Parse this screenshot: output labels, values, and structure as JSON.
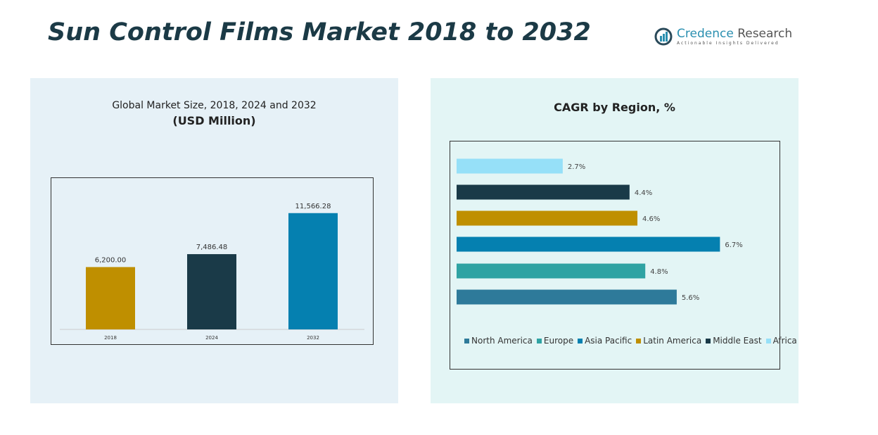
{
  "title": "Sun Control Films Market 2018 to 2032",
  "logo": {
    "name_a": "Credence",
    "name_b": "Research",
    "tagline": "Actionable Insights Delivered"
  },
  "chart_data": [
    {
      "type": "bar",
      "title": "Global Market Size, 2018, 2024 and 2032",
      "subtitle": "(USD Million)",
      "categories": [
        "2018",
        "2024",
        "2032"
      ],
      "values": [
        6200.0,
        7486.48,
        11566.28
      ],
      "data_labels": [
        "6,200.00",
        "7,486.48",
        "11,566.28"
      ],
      "colors": [
        "#bf8f00",
        "#1a3a48",
        "#0580b0"
      ],
      "ylim": [
        0,
        14000
      ],
      "grid": false
    },
    {
      "type": "bar",
      "orientation": "horizontal",
      "title": "CAGR by Region, %",
      "categories": [
        "North America",
        "Europe",
        "Asia Pacific",
        "Latin America",
        "Middle East",
        "Africa"
      ],
      "values": [
        5.6,
        4.8,
        6.7,
        4.6,
        4.4,
        2.7
      ],
      "data_labels": [
        "5.6%",
        "4.8%",
        "6.7%",
        "4.6%",
        "4.4%",
        "2.7%"
      ],
      "colors": [
        "#2e7a9a",
        "#2fa3a3",
        "#0580b0",
        "#bf8f00",
        "#1a3a48",
        "#96e0f8"
      ],
      "xlim": [
        0,
        8
      ],
      "grid": false,
      "legend": "bottom"
    }
  ]
}
